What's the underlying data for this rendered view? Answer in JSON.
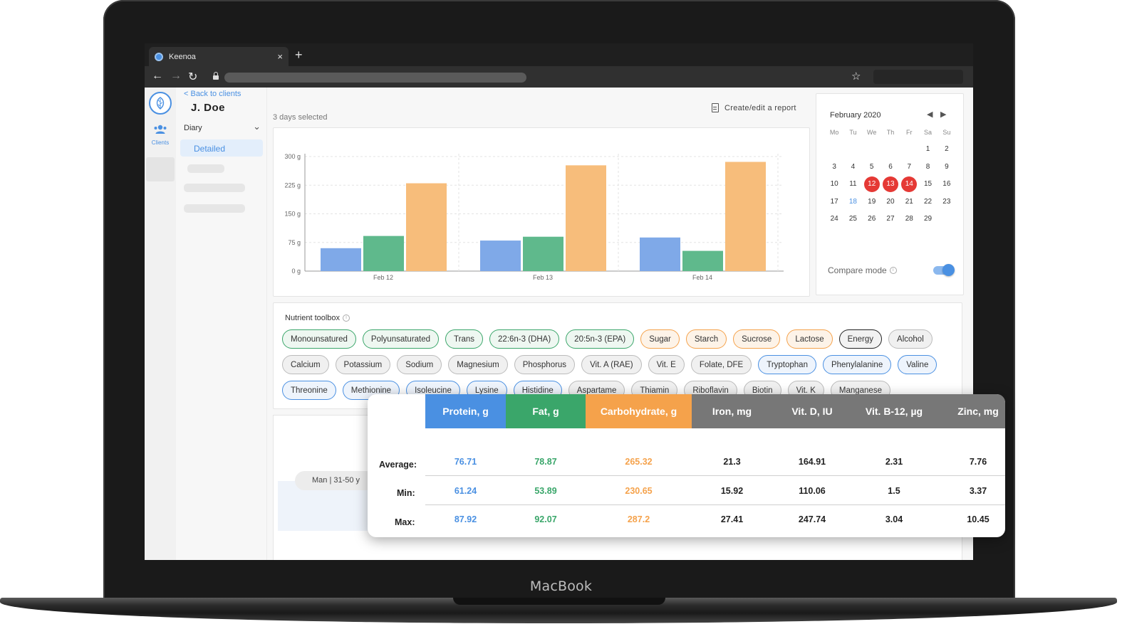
{
  "device": {
    "brand": "MacBook"
  },
  "browser": {
    "tab_title": "Keenoa",
    "tab_close": "×",
    "new_tab": "+",
    "back": "←",
    "forward": "→",
    "reload": "↻",
    "star": "☆"
  },
  "rail": {
    "clients_label": "Clients"
  },
  "sidebar": {
    "back_link": "< Back to clients",
    "client_name": "J. Doe",
    "diary_label": "Diary",
    "diary_chevron": "⌄",
    "detailed_label": "Detailed"
  },
  "main": {
    "days_selected": "3 days selected",
    "report_link": "Create/edit a report"
  },
  "colors": {
    "protein": "#4a90e2",
    "fat": "#3aa66a",
    "carbohydrate": "#f5a24b",
    "grey_header": "#777777",
    "selected_day": "#e53935"
  },
  "chart_data": {
    "type": "bar",
    "categories": [
      "Feb 12",
      "Feb 13",
      "Feb 14"
    ],
    "series": [
      {
        "values": [
          60,
          80,
          88
        ],
        "color": "#7fa9e8"
      },
      {
        "values": [
          92,
          90,
          53
        ],
        "color": "#5fb98c"
      },
      {
        "values": [
          230,
          277,
          286
        ],
        "color": "#f7bd7b"
      }
    ],
    "yticks": [
      "0 g",
      "75 g",
      "150 g",
      "225 g",
      "300 g"
    ],
    "ylim": [
      0,
      300
    ],
    "grid": true
  },
  "calendar": {
    "title": "February 2020",
    "prev": "◀",
    "next": "▶",
    "weekdays": [
      "Mo",
      "Tu",
      "We",
      "Th",
      "Fr",
      "Sa",
      "Su"
    ],
    "weeks": [
      [
        "",
        "",
        "",
        "",
        "",
        "1",
        "2"
      ],
      [
        "3",
        "4",
        "5",
        "6",
        "7",
        "8",
        "9"
      ],
      [
        "10",
        "11",
        "12",
        "13",
        "14",
        "15",
        "16"
      ],
      [
        "17",
        "18",
        "19",
        "20",
        "21",
        "22",
        "23"
      ],
      [
        "24",
        "25",
        "26",
        "27",
        "28",
        "29",
        ""
      ]
    ],
    "selected_days": [
      "12",
      "13",
      "14"
    ],
    "today": "18",
    "compare_label": "Compare mode",
    "info": "i",
    "compare_on": true
  },
  "toolbox": {
    "title": "Nutrient toolbox",
    "info": "i",
    "chips": [
      {
        "label": "Monounsatured",
        "style": "green"
      },
      {
        "label": "Polyunsaturated",
        "style": "green"
      },
      {
        "label": "Trans",
        "style": "green"
      },
      {
        "label": "22:6n-3 (DHA)",
        "style": "green"
      },
      {
        "label": "20:5n-3 (EPA)",
        "style": "green"
      },
      {
        "label": "Sugar",
        "style": "orange"
      },
      {
        "label": "Starch",
        "style": "orange"
      },
      {
        "label": "Sucrose",
        "style": "orange"
      },
      {
        "label": "Lactose",
        "style": "orange"
      },
      {
        "label": "Energy",
        "style": "black"
      },
      {
        "label": "Alcohol",
        "style": "grey"
      },
      {
        "label": "Calcium",
        "style": "grey"
      },
      {
        "label": "Potassium",
        "style": "grey"
      },
      {
        "label": "Sodium",
        "style": "grey"
      },
      {
        "label": "Magnesium",
        "style": "grey"
      },
      {
        "label": "Phosphorus",
        "style": "grey"
      },
      {
        "label": "Vit. A (RAE)",
        "style": "grey"
      },
      {
        "label": "Vit. E",
        "style": "grey"
      },
      {
        "label": "Folate, DFE",
        "style": "grey"
      },
      {
        "label": "Tryptophan",
        "style": "blue"
      },
      {
        "label": "Phenylalanine",
        "style": "blue"
      },
      {
        "label": "Valine",
        "style": "blue"
      },
      {
        "label": "Threonine",
        "style": "blue"
      },
      {
        "label": "Methionine",
        "style": "blue"
      },
      {
        "label": "Isoleucine",
        "style": "blue"
      },
      {
        "label": "Lysine",
        "style": "blue"
      },
      {
        "label": "Histidine",
        "style": "blue"
      },
      {
        "label": "Aspartame",
        "style": "grey"
      },
      {
        "label": "Thiamin",
        "style": "grey"
      },
      {
        "label": "Riboflavin",
        "style": "grey"
      },
      {
        "label": "Biotin",
        "style": "grey"
      },
      {
        "label": "Vit. K",
        "style": "grey"
      },
      {
        "label": "Manganese",
        "style": "grey"
      }
    ]
  },
  "demographic": {
    "label": "Man | 31-50 y"
  },
  "summary_table": {
    "row_labels": [
      "Average:",
      "Min:",
      "Max:"
    ],
    "columns": [
      {
        "header": "Protein, g",
        "header_color": "#4a90e2",
        "value_color": "#4a90e2",
        "values": [
          "76.71",
          "61.24",
          "87.92"
        ]
      },
      {
        "header": "Fat, g",
        "header_color": "#3aa66a",
        "value_color": "#3aa66a",
        "values": [
          "78.87",
          "53.89",
          "92.07"
        ]
      },
      {
        "header": "Carbohydrate, g",
        "header_color": "#f5a24b",
        "value_color": "#f5a24b",
        "values": [
          "265.32",
          "230.65",
          "287.2"
        ]
      },
      {
        "header": "Iron, mg",
        "header_color": "#777777",
        "value_color": "#222222",
        "values": [
          "21.3",
          "15.92",
          "27.41"
        ]
      },
      {
        "header": "Vit. D, IU",
        "header_color": "#777777",
        "value_color": "#222222",
        "values": [
          "164.91",
          "110.06",
          "247.74"
        ]
      },
      {
        "header": "Vit. B-12, µg",
        "header_color": "#777777",
        "value_color": "#222222",
        "values": [
          "2.31",
          "1.5",
          "3.04"
        ]
      },
      {
        "header": "Zinc, mg",
        "header_color": "#777777",
        "value_color": "#222222",
        "values": [
          "7.76",
          "3.37",
          "10.45"
        ]
      }
    ]
  }
}
